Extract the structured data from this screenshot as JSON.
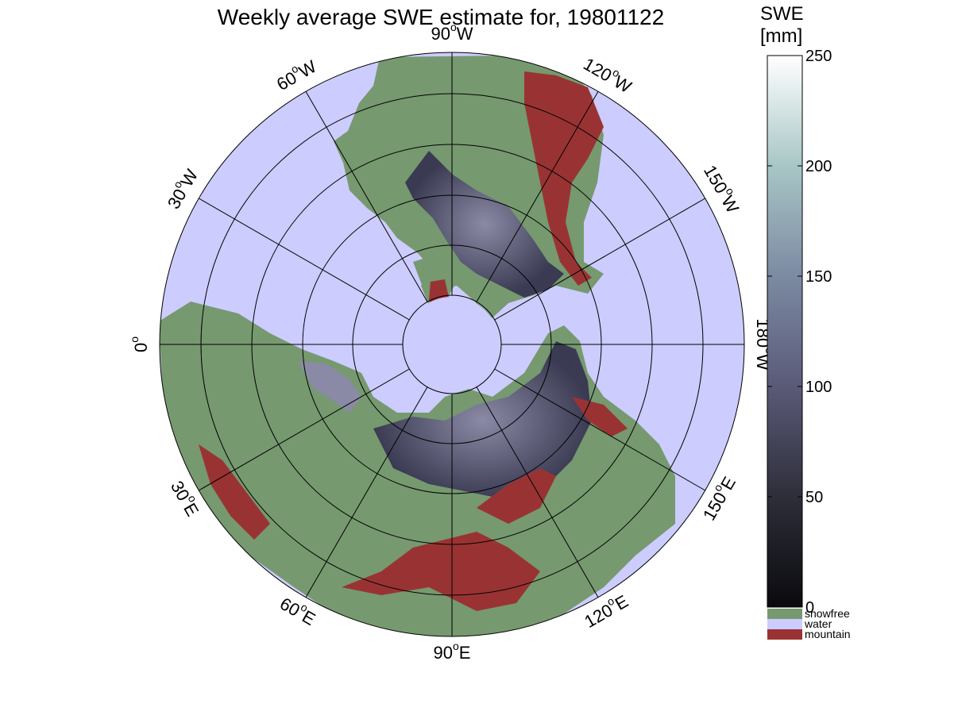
{
  "title": "Weekly average SWE estimate for, 19801122",
  "map": {
    "projection": "north polar stereographic",
    "center_longitude_label": "0°",
    "longitude_labels": [
      {
        "deg": "90",
        "hemi": "W"
      },
      {
        "deg": "60",
        "hemi": "W"
      },
      {
        "deg": "30",
        "hemi": "W"
      },
      {
        "deg": "0",
        "hemi": ""
      },
      {
        "deg": "30",
        "hemi": "E"
      },
      {
        "deg": "60",
        "hemi": "E"
      },
      {
        "deg": "90",
        "hemi": "E"
      },
      {
        "deg": "120",
        "hemi": "E"
      },
      {
        "deg": "150",
        "hemi": "E"
      },
      {
        "deg": "180",
        "hemi": "W"
      },
      {
        "deg": "150",
        "hemi": "W"
      },
      {
        "deg": "120",
        "hemi": "W"
      }
    ],
    "colors": {
      "water": "#ccccff",
      "snowfree": "#76996f",
      "mountain": "#993333",
      "snow_low": "#1a1a22",
      "snow_mid": "#5a5a78",
      "snow_high": "#ffffff"
    }
  },
  "colorbar": {
    "title_line1": "SWE",
    "title_line2": "[mm]",
    "min": 0,
    "max": 250,
    "ticks": [
      "0",
      "50",
      "100",
      "150",
      "200",
      "250"
    ],
    "categories": [
      {
        "label": "snowfree",
        "color": "#76996f"
      },
      {
        "label": "water",
        "color": "#ccccff"
      },
      {
        "label": "mountain",
        "color": "#993333"
      }
    ]
  }
}
